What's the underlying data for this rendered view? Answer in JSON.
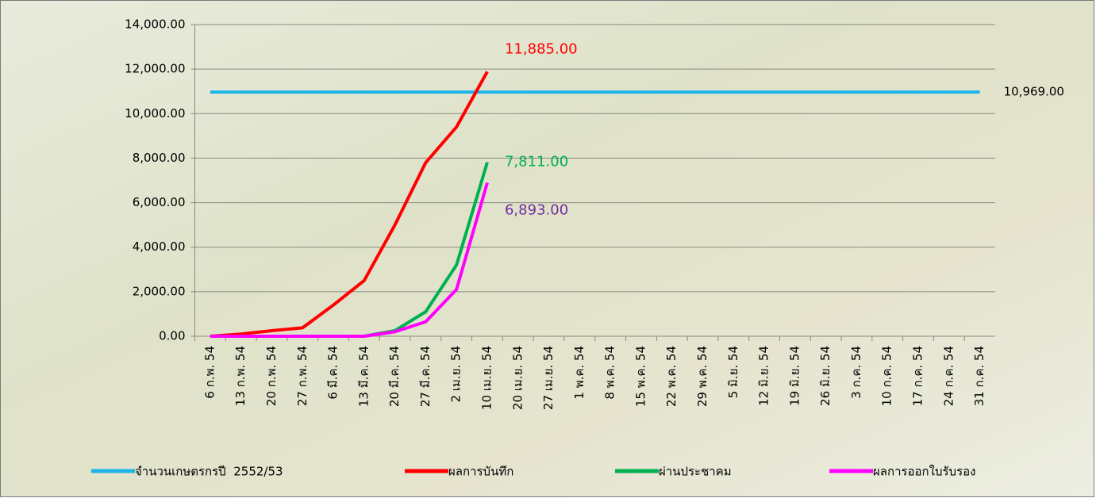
{
  "chart_data": {
    "type": "line",
    "categories": [
      "6 ก.พ. 54",
      "13 ก.พ. 54",
      "20 ก.พ. 54",
      "27 ก.พ. 54",
      "6 มี.ค. 54",
      "13 มี.ค. 54",
      "20 มี.ค. 54",
      "27 มี.ค. 54",
      "2 เม.ย. 54",
      "10 เม.ย. 54",
      "20 เม.ย. 54",
      "27 เม.ย. 54",
      "1 พ.ค. 54",
      "8 พ.ค. 54",
      "15 พ.ค. 54",
      "22 พ.ค. 54",
      "29 พ.ค. 54",
      "5 มิ.ย. 54",
      "12 มิ.ย. 54",
      "19 มิ.ย. 54",
      "26 มิ.ย. 54",
      "3 ก.ค. 54",
      "10 ก.ค. 54",
      "17 ก.ค. 54",
      "24 ก.ค. 54",
      "31 ก.ค. 54"
    ],
    "series": [
      {
        "name": "จำนวนเกษตรกรปี  2552/53",
        "color": "#1fb4e8",
        "label_color": "#000000",
        "values": [
          10969,
          10969,
          10969,
          10969,
          10969,
          10969,
          10969,
          10969,
          10969,
          10969,
          10969,
          10969,
          10969,
          10969,
          10969,
          10969,
          10969,
          10969,
          10969,
          10969,
          10969,
          10969,
          10969,
          10969,
          10969,
          10969
        ],
        "value_labels": [
          null,
          null,
          null,
          null,
          null,
          null,
          null,
          null,
          null,
          null,
          null,
          null,
          null,
          null,
          null,
          null,
          null,
          null,
          null,
          null,
          null,
          null,
          null,
          null,
          null,
          "10,969.00"
        ]
      },
      {
        "name": "ผลการบันทึก",
        "color": "#ff0000",
        "label_color": "#ff0000",
        "values": [
          0,
          100,
          250,
          380,
          1400,
          2500,
          5000,
          7800,
          9400,
          11885,
          null,
          null,
          null,
          null,
          null,
          null,
          null,
          null,
          null,
          null,
          null,
          null,
          null,
          null,
          null,
          null
        ],
        "value_labels": [
          null,
          null,
          null,
          null,
          null,
          null,
          null,
          null,
          null,
          "11,885.00",
          null,
          null,
          null,
          null,
          null,
          null,
          null,
          null,
          null,
          null,
          null,
          null,
          null,
          null,
          null,
          null
        ]
      },
      {
        "name": "ผ่านประชาคม",
        "color": "#00b050",
        "label_color": "#00b050",
        "values": [
          0,
          0,
          0,
          0,
          0,
          0,
          250,
          1100,
          3200,
          7811,
          null,
          null,
          null,
          null,
          null,
          null,
          null,
          null,
          null,
          null,
          null,
          null,
          null,
          null,
          null,
          null
        ],
        "value_labels": [
          null,
          null,
          null,
          null,
          null,
          null,
          null,
          null,
          null,
          "7,811.00",
          null,
          null,
          null,
          null,
          null,
          null,
          null,
          null,
          null,
          null,
          null,
          null,
          null,
          null,
          null,
          null
        ]
      },
      {
        "name": "ผลการออกใบรับรอง",
        "color": "#ff00ff",
        "label_color": "#7030a0",
        "values": [
          0,
          0,
          0,
          0,
          0,
          0,
          200,
          650,
          2100,
          6893,
          null,
          null,
          null,
          null,
          null,
          null,
          null,
          null,
          null,
          null,
          null,
          null,
          null,
          null,
          null,
          null
        ],
        "value_labels": [
          null,
          null,
          null,
          null,
          null,
          null,
          null,
          null,
          null,
          "6,893.00",
          null,
          null,
          null,
          null,
          null,
          null,
          null,
          null,
          null,
          null,
          null,
          null,
          null,
          null,
          null,
          null
        ]
      }
    ],
    "ylim": [
      0,
      14000
    ],
    "yticks": [
      {
        "value": 0,
        "label": "0.00"
      },
      {
        "value": 2000,
        "label": "2,000.00"
      },
      {
        "value": 4000,
        "label": "4,000.00"
      },
      {
        "value": 6000,
        "label": "6,000.00"
      },
      {
        "value": 8000,
        "label": "8,000.00"
      },
      {
        "value": 10000,
        "label": "10,000.00"
      },
      {
        "value": 12000,
        "label": "12,000.00"
      },
      {
        "value": 14000,
        "label": "14,000.00"
      }
    ],
    "grid": true
  }
}
